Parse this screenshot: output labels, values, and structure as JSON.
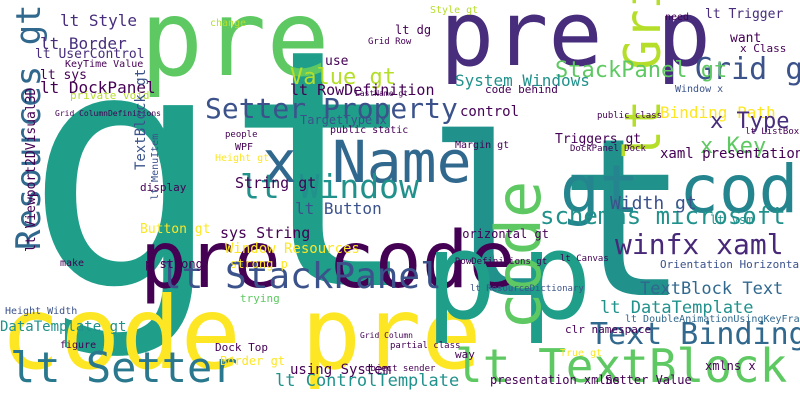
{
  "words": [
    "gt",
    "lt",
    "pre",
    "pre p",
    "code pre",
    "pre code",
    "p",
    "p",
    "code",
    "lt Grid",
    "gt code",
    "x Name",
    "lt Window",
    "Setter Property",
    "lt StackPanel",
    "lt Setter",
    "lt TextBlock",
    "Text Binding",
    "winfx xaml",
    "schemas microsoft",
    "Resources gt",
    "Grid gt",
    "StackPanel gt",
    "Value gt",
    "lt RowDefinition",
    "lt Button",
    "lt Border",
    "lt Style",
    "lt DockPanel",
    "lt UserControl",
    "String gt",
    "sys String",
    "Window Resources",
    "DataTemplate gt",
    "Button gt",
    "lt ControlTemplate",
    "using System",
    "TextBlock Text",
    "lt DataTemplate",
    "Width gt",
    "Binding Path",
    "x Type",
    "x Key",
    "xaml presentation",
    "Triggers gt",
    "lt Trigger",
    "System Windows",
    "control",
    "Horizontal gt",
    "presentation xmlns",
    "Setter Value",
    "Dock Top",
    "Border gt",
    "lt sys",
    "KeyTime Value",
    "private void",
    "use",
    "want",
    "x Class",
    "need",
    "Height gt",
    "WPF",
    "people",
    "display",
    "make",
    "Height Width",
    "lt ListBox",
    "lt vsm",
    "strong p",
    "p strong",
    "trying",
    "xmlns x",
    "True gt",
    "way",
    "figure",
    "Margin gt",
    "TargetType x",
    "public static",
    "DockPanel Dock",
    "Grid Row",
    "LastName gt",
    "Style gt",
    "change",
    "code behind",
    "public class",
    "Window x",
    "Grid ColumnDefinitions",
    "RowDefinitions gt",
    "lt ResourceDictionary",
    "lt Canvas",
    "Orientation Horizontal",
    "lt DoubleAnimationUsingKeyFrames",
    "object sender",
    "partial class",
    "lt MenuItem",
    "TextBlock gt",
    "lt Viewport2DVisual3D",
    "lt dg",
    "Grid Column",
    "clr namespace"
  ]
}
